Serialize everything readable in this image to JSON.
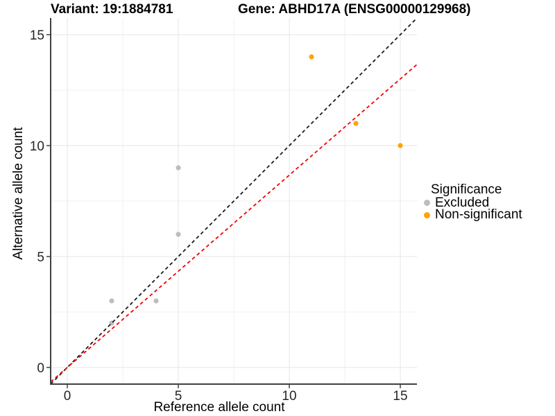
{
  "chart_data": {
    "type": "scatter",
    "title_left": "Variant: 19:1884781",
    "title_right": "Gene: ABHD17A (ENSG00000129968)",
    "xlabel": "Reference allele count",
    "ylabel": "Alternative allele count",
    "xlim": [
      -0.75,
      15.75
    ],
    "ylim": [
      -0.75,
      15.75
    ],
    "x_ticks": [
      0,
      5,
      10,
      15
    ],
    "y_ticks": [
      0,
      5,
      10,
      15
    ],
    "x_minor_ticks": [
      2.5,
      7.5,
      12.5
    ],
    "y_minor_ticks": [
      2.5,
      7.5,
      12.5
    ],
    "grid": true,
    "series": [
      {
        "name": "Excluded",
        "color": "#BDBDBD",
        "points": [
          [
            2,
            2
          ],
          [
            2,
            3
          ],
          [
            4,
            3
          ],
          [
            5,
            6
          ],
          [
            5,
            9
          ]
        ]
      },
      {
        "name": "Non-significant",
        "color": "#FFA400",
        "points": [
          [
            11,
            14
          ],
          [
            13,
            11
          ],
          [
            15,
            10
          ]
        ]
      }
    ],
    "lines": [
      {
        "name": "identity-line",
        "color": "#1A1A1A",
        "style": "dashed",
        "slope": 1,
        "intercept": 0
      },
      {
        "name": "regression-line",
        "color": "#F20000",
        "style": "dashed",
        "slope": 0.867,
        "intercept": 0
      }
    ],
    "legend": {
      "title": "Significance",
      "position": "right",
      "entries": [
        {
          "label": "Excluded",
          "color": "#BDBDBD"
        },
        {
          "label": "Non-significant",
          "color": "#FFA400"
        }
      ]
    }
  },
  "colors": {
    "background": "#FFFFFF",
    "axis_line": "#404040",
    "grid_major": "#E6E6E6",
    "grid_minor": "#F2F2F2",
    "tick_text": "#262626"
  }
}
